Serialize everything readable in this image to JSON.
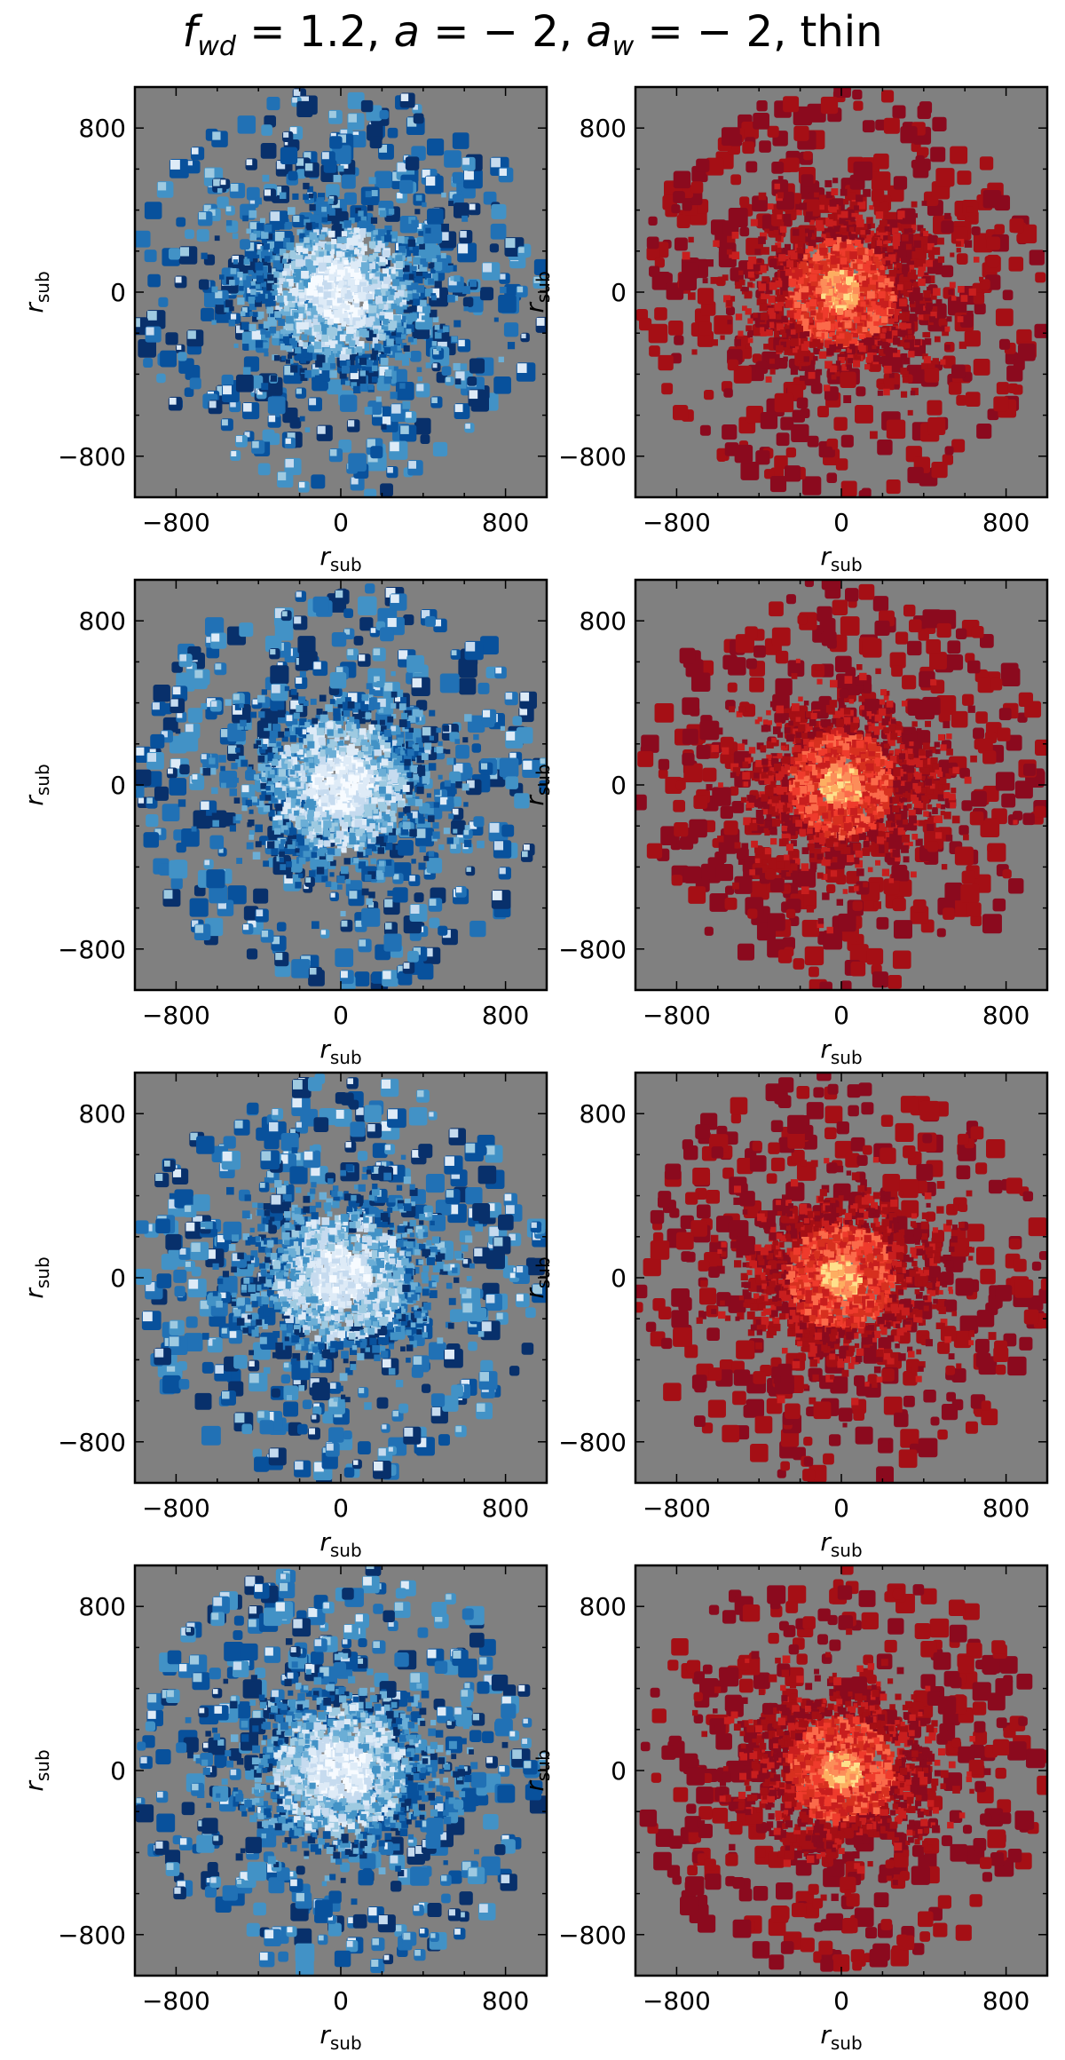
{
  "figure": {
    "title_f": "f",
    "title_f_sub": "wd",
    "title_mid": " = 1.2, ",
    "title_a": "a",
    "title_a_val": " = − 2, ",
    "title_aw": "a",
    "title_aw_sub": "w",
    "title_aw_val": " = − 2, thin"
  },
  "colors": {
    "panel_background": "#808080",
    "blue_dark": "#08306b",
    "blue_mid": "#2171b5",
    "blue_light": "#deebf7",
    "red_dark": "#8b0a1e",
    "red_mid": "#d7301f",
    "red_light": "#fdae61"
  },
  "chart_data": [
    {
      "type": "heatmap",
      "row": 1,
      "column": "left",
      "colormap": "Blues",
      "xlabel": "r_sub",
      "ylabel": "r_sub",
      "xticks": [
        -800,
        0,
        800
      ],
      "yticks": [
        800,
        0,
        -800
      ],
      "xlim": [
        -1000,
        1000
      ],
      "ylim": [
        -1000,
        1000
      ]
    },
    {
      "type": "heatmap",
      "row": 1,
      "column": "right",
      "colormap": "hot",
      "xlabel": "r_sub",
      "ylabel": "r_sub",
      "xticks": [
        -800,
        0,
        800
      ],
      "yticks": [
        800,
        0,
        -800
      ],
      "xlim": [
        -1000,
        1000
      ],
      "ylim": [
        -1000,
        1000
      ]
    },
    {
      "type": "heatmap",
      "row": 2,
      "column": "left",
      "colormap": "Blues",
      "xlabel": "r_sub",
      "ylabel": "r_sub",
      "xticks": [
        -800,
        0,
        800
      ],
      "yticks": [
        800,
        0,
        -800
      ],
      "xlim": [
        -1000,
        1000
      ],
      "ylim": [
        -1000,
        1000
      ]
    },
    {
      "type": "heatmap",
      "row": 2,
      "column": "right",
      "colormap": "hot",
      "xlabel": "r_sub",
      "ylabel": "r_sub",
      "xticks": [
        -800,
        0,
        800
      ],
      "yticks": [
        800,
        0,
        -800
      ],
      "xlim": [
        -1000,
        1000
      ],
      "ylim": [
        -1000,
        1000
      ]
    },
    {
      "type": "heatmap",
      "row": 3,
      "column": "left",
      "colormap": "Blues",
      "xlabel": "r_sub",
      "ylabel": "r_sub",
      "xticks": [
        -800,
        0,
        800
      ],
      "yticks": [
        800,
        0,
        -800
      ],
      "xlim": [
        -1000,
        1000
      ],
      "ylim": [
        -1000,
        1000
      ]
    },
    {
      "type": "heatmap",
      "row": 3,
      "column": "right",
      "colormap": "hot",
      "xlabel": "r_sub",
      "ylabel": "r_sub",
      "xticks": [
        -800,
        0,
        800
      ],
      "yticks": [
        800,
        0,
        -800
      ],
      "xlim": [
        -1000,
        1000
      ],
      "ylim": [
        -1000,
        1000
      ]
    },
    {
      "type": "heatmap",
      "row": 4,
      "column": "left",
      "colormap": "Blues",
      "xlabel": "r_sub",
      "ylabel": "r_sub",
      "xticks": [
        -800,
        0,
        800
      ],
      "yticks": [
        800,
        0,
        -800
      ],
      "xlim": [
        -1000,
        1000
      ],
      "ylim": [
        -1000,
        1000
      ]
    },
    {
      "type": "heatmap",
      "row": 4,
      "column": "right",
      "colormap": "hot",
      "xlabel": "r_sub",
      "ylabel": "r_sub",
      "xticks": [
        -800,
        0,
        800
      ],
      "yticks": [
        800,
        0,
        -800
      ],
      "xlim": [
        -1000,
        1000
      ],
      "ylim": [
        -1000,
        1000
      ]
    }
  ]
}
